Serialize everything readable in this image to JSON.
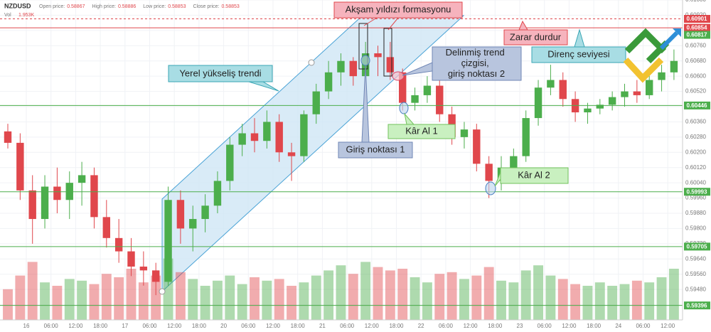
{
  "header": {
    "symbol": "NZDUSD",
    "fields": [
      {
        "label": "Open price:",
        "value": 0.58867
      },
      {
        "label": "High price:",
        "value": 0.58886
      },
      {
        "label": "Low price:",
        "value": 0.58853
      },
      {
        "label": "Close price:",
        "value": 0.58853
      }
    ],
    "volume_label": "Vol",
    "volume": {
      "value": 1953,
      "label": "1.953K"
    }
  },
  "chart_data": {
    "type": "candlestick",
    "up_color": "#4cae4c",
    "down_color": "#e0474c",
    "ylim": [
      0.5932,
      0.61
    ],
    "yticks": [
      {
        "value": 0.594,
        "label": "0.59400"
      },
      {
        "value": 0.5948,
        "label": "0.59480"
      },
      {
        "value": 0.5956,
        "label": "0.59560"
      },
      {
        "value": 0.5964,
        "label": "0.59640"
      },
      {
        "value": 0.5972,
        "label": "0.59720"
      },
      {
        "value": 0.598,
        "label": "0.59800"
      },
      {
        "value": 0.5988,
        "label": "0.59880"
      },
      {
        "value": 0.5996,
        "label": "0.59960"
      },
      {
        "value": 0.6004,
        "label": "0.60040"
      },
      {
        "value": 0.6012,
        "label": "0.60120"
      },
      {
        "value": 0.602,
        "label": "0.60200"
      },
      {
        "value": 0.6028,
        "label": "0.60280"
      },
      {
        "value": 0.6036,
        "label": "0.60360"
      },
      {
        "value": 0.6044,
        "label": "0.60440"
      },
      {
        "value": 0.6052,
        "label": "0.60520"
      },
      {
        "value": 0.606,
        "label": "0.60600"
      },
      {
        "value": 0.6068,
        "label": "0.60680"
      },
      {
        "value": 0.6076,
        "label": "0.60760"
      },
      {
        "value": 0.6084,
        "label": "0.60840"
      },
      {
        "value": 0.6092,
        "label": "0.60920"
      },
      {
        "value": 0.61,
        "label": "0.61000"
      }
    ],
    "x_labels": [
      "16",
      "06:00",
      "12:00",
      "18:00",
      "17",
      "06:00",
      "12:00",
      "18:00",
      "20",
      "06:00",
      "12:00",
      "18:00",
      "21",
      "06:00",
      "12:00",
      "18:00",
      "22",
      "06:00",
      "12:00",
      "18:00",
      "23",
      "06:00",
      "12:00",
      "18:00",
      "24",
      "06:00",
      "12:00"
    ],
    "ohlc": [
      [
        0.6031,
        0.6035,
        0.6022,
        0.6025
      ],
      [
        0.6025,
        0.603,
        0.5995,
        0.6
      ],
      [
        0.6,
        0.6008,
        0.5972,
        0.5985
      ],
      [
        0.5985,
        0.6008,
        0.598,
        0.6002
      ],
      [
        0.6002,
        0.6012,
        0.5988,
        0.5995
      ],
      [
        0.5995,
        0.601,
        0.5985,
        0.6004
      ],
      [
        0.6004,
        0.6015,
        0.5992,
        0.6008
      ],
      [
        0.6008,
        0.6012,
        0.598,
        0.5986
      ],
      [
        0.5986,
        0.5995,
        0.597,
        0.5975
      ],
      [
        0.5975,
        0.5985,
        0.5962,
        0.5968
      ],
      [
        0.5968,
        0.5975,
        0.5955,
        0.596
      ],
      [
        0.596,
        0.5968,
        0.595,
        0.5958
      ],
      [
        0.5958,
        0.5962,
        0.5945,
        0.5952
      ],
      [
        0.5952,
        0.6002,
        0.595,
        0.5995
      ],
      [
        0.5995,
        0.6,
        0.5972,
        0.598
      ],
      [
        0.598,
        0.5992,
        0.5968,
        0.5985
      ],
      [
        0.5985,
        0.5998,
        0.5978,
        0.5992
      ],
      [
        0.5992,
        0.601,
        0.5988,
        0.6005
      ],
      [
        0.6005,
        0.6028,
        0.6,
        0.6024
      ],
      [
        0.6024,
        0.6035,
        0.6018,
        0.603
      ],
      [
        0.603,
        0.6038,
        0.602,
        0.6026
      ],
      [
        0.6026,
        0.6042,
        0.6022,
        0.6036
      ],
      [
        0.6036,
        0.604,
        0.6015,
        0.602
      ],
      [
        0.602,
        0.6025,
        0.6005,
        0.6018
      ],
      [
        0.6018,
        0.6042,
        0.6015,
        0.604
      ],
      [
        0.604,
        0.6056,
        0.6035,
        0.6052
      ],
      [
        0.6052,
        0.6068,
        0.6048,
        0.6062
      ],
      [
        0.6062,
        0.6072,
        0.6055,
        0.6068
      ],
      [
        0.6068,
        0.607,
        0.6055,
        0.606
      ],
      [
        0.606,
        0.6078,
        0.6058,
        0.6072
      ],
      [
        0.6072,
        0.6076,
        0.606,
        0.607
      ],
      [
        0.607,
        0.6078,
        0.6058,
        0.6062
      ],
      [
        0.6062,
        0.6064,
        0.6042,
        0.6046
      ],
      [
        0.6046,
        0.6054,
        0.6042,
        0.605
      ],
      [
        0.605,
        0.606,
        0.6046,
        0.6055
      ],
      [
        0.6055,
        0.6058,
        0.6036,
        0.604
      ],
      [
        0.604,
        0.6044,
        0.6024,
        0.6028
      ],
      [
        0.6028,
        0.6036,
        0.6022,
        0.6032
      ],
      [
        0.6032,
        0.6035,
        0.601,
        0.6014
      ],
      [
        0.6014,
        0.6018,
        0.5996,
        0.6005
      ],
      [
        0.6005,
        0.6018,
        0.6,
        0.6012
      ],
      [
        0.6012,
        0.6022,
        0.6008,
        0.6018
      ],
      [
        0.6018,
        0.6042,
        0.6015,
        0.6038
      ],
      [
        0.6038,
        0.6058,
        0.6034,
        0.6054
      ],
      [
        0.6054,
        0.6066,
        0.605,
        0.6058
      ],
      [
        0.6058,
        0.6062,
        0.6044,
        0.6048
      ],
      [
        0.6048,
        0.6052,
        0.6036,
        0.6041
      ],
      [
        0.6041,
        0.6046,
        0.6035,
        0.6043
      ],
      [
        0.6043,
        0.6048,
        0.604,
        0.6045
      ],
      [
        0.6045,
        0.6052,
        0.6042,
        0.6049
      ],
      [
        0.6049,
        0.6056,
        0.6044,
        0.6052
      ],
      [
        0.6052,
        0.6058,
        0.6046,
        0.605
      ],
      [
        0.605,
        0.6062,
        0.6048,
        0.6058
      ],
      [
        0.6058,
        0.6066,
        0.6052,
        0.6062
      ],
      [
        0.6062,
        0.6074,
        0.6058,
        0.6068
      ]
    ],
    "volume": [
      1800,
      2600,
      3400,
      2200,
      2000,
      2400,
      2300,
      2100,
      2700,
      2500,
      3000,
      2200,
      2600,
      3600,
      2800,
      2400,
      2000,
      2300,
      2600,
      2100,
      2500,
      2300,
      2400,
      2000,
      2200,
      2600,
      2900,
      3200,
      2700,
      3400,
      3100,
      2900,
      3000,
      2500,
      2200,
      2700,
      2800,
      2400,
      2600,
      3100,
      2300,
      2200,
      2900,
      3200,
      2600,
      2400,
      2100,
      2000,
      2200,
      2000,
      2100,
      2300,
      2200,
      2500,
      3000
    ],
    "volume_lim": [
      0,
      5000
    ],
    "price_levels": [
      {
        "value": 0.60901,
        "color": "#e0474c",
        "style": "dashed"
      },
      {
        "value": 0.60854,
        "color": "#e0474c",
        "style": "solid"
      },
      {
        "value": 0.60817,
        "color": "#4cae4c",
        "style": "none"
      },
      {
        "value": 0.60446,
        "color": "#4cae4c",
        "style": "solid"
      },
      {
        "value": 0.59993,
        "color": "#4cae4c",
        "style": "solid"
      },
      {
        "value": 0.59705,
        "color": "#4cae4c",
        "style": "solid"
      },
      {
        "value": 0.59396,
        "color": "#4cae4c",
        "style": "solid"
      }
    ],
    "annotations": {
      "pattern": "Akşam yıldızı formasyonu",
      "stop_loss": "Zarar durdur",
      "resistance": "Direnç seviyesi",
      "broken_trend": [
        "Delinmiş trend",
        "çizgisi,",
        "giriş noktası 2"
      ],
      "uptrend": "Yerel yükseliş trendi",
      "entry_1": "Giriş noktası 1",
      "take_profit_1": "Kâr Al 1",
      "take_profit_2": "Kâr Al 2"
    }
  }
}
